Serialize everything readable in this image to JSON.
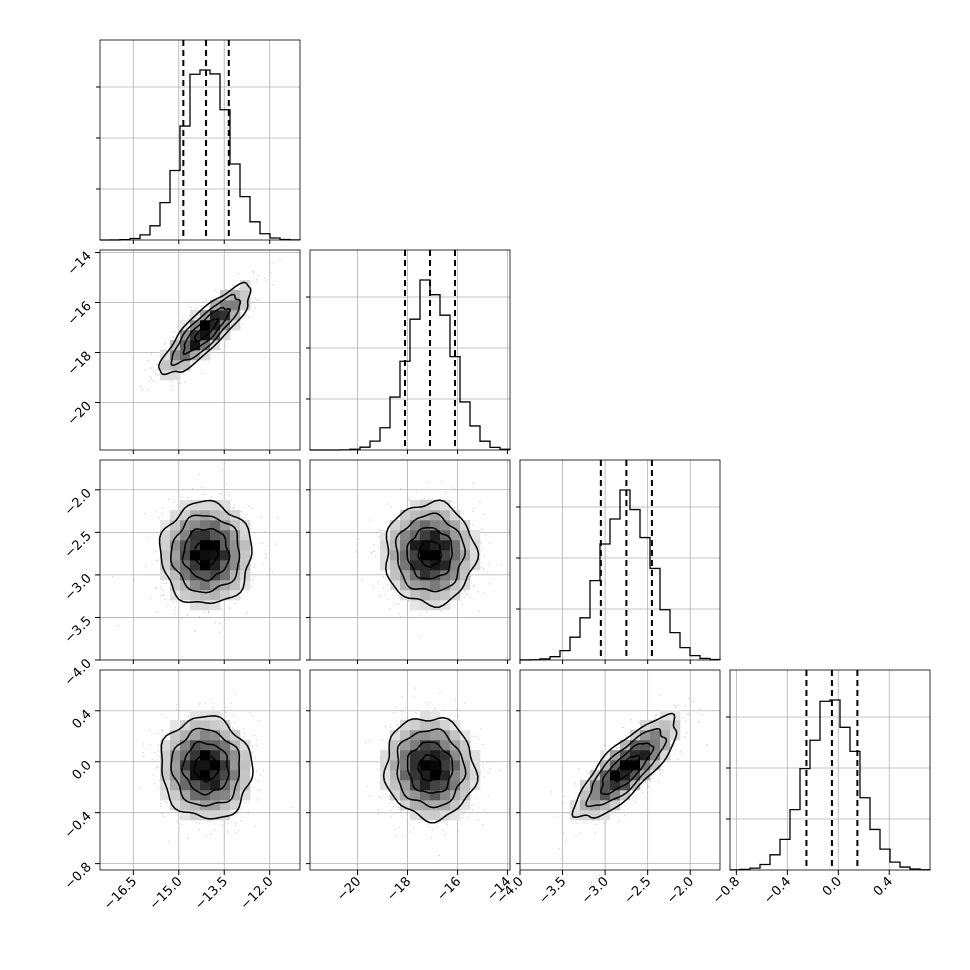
{
  "colors": {
    "foreground": "#000000",
    "grid": "#b0b0b0",
    "scatter": "#a6a6a6",
    "background": "#ffffff"
  },
  "chart_data": {
    "type": "corner",
    "grid": true,
    "n_params": 4,
    "params": [
      {
        "range": [
          -17.6,
          -11.0
        ],
        "mean": -14.1,
        "sd": 0.75,
        "quantiles": [
          -14.85,
          -14.1,
          -13.35
        ],
        "ticks": [
          -16.5,
          -15.0,
          -13.5,
          -12.0
        ],
        "tick_labels": [
          "−16.5",
          "−15.0",
          "−13.5",
          "−12.0"
        ]
      },
      {
        "range": [
          -21.9,
          -13.9
        ],
        "mean": -17.1,
        "sd": 0.9,
        "quantiles": [
          -18.1,
          -17.1,
          -16.1
        ],
        "ticks": [
          -20,
          -18,
          -16,
          -14
        ],
        "tick_labels": [
          "−20",
          "−18",
          "−16",
          "−14"
        ]
      },
      {
        "range": [
          -4.0,
          -1.65
        ],
        "mean": -2.75,
        "sd": 0.3,
        "quantiles": [
          -3.05,
          -2.75,
          -2.45
        ],
        "ticks": [
          -4.0,
          -3.5,
          -3.0,
          -2.5,
          -2.0
        ],
        "tick_labels": [
          "−4.0",
          "−3.5",
          "−3.0",
          "−2.5",
          "−2.0"
        ]
      },
      {
        "range": [
          -0.85,
          0.72
        ],
        "mean": -0.05,
        "sd": 0.2,
        "quantiles": [
          -0.25,
          -0.05,
          0.15
        ],
        "ticks": [
          -0.8,
          -0.4,
          0.0,
          0.4
        ],
        "tick_labels": [
          "−0.8",
          "−0.4",
          "0.0",
          "0.4"
        ]
      }
    ],
    "correlations": [
      {
        "pair": [
          0,
          1
        ],
        "rho": 0.85
      },
      {
        "pair": [
          0,
          2
        ],
        "rho": 0.0
      },
      {
        "pair": [
          0,
          3
        ],
        "rho": -0.05
      },
      {
        "pair": [
          1,
          2
        ],
        "rho": 0.0
      },
      {
        "pair": [
          1,
          3
        ],
        "rho": -0.05
      },
      {
        "pair": [
          2,
          3
        ],
        "rho": 0.8
      }
    ],
    "histogram_bins": 20,
    "contour_levels": 3
  }
}
